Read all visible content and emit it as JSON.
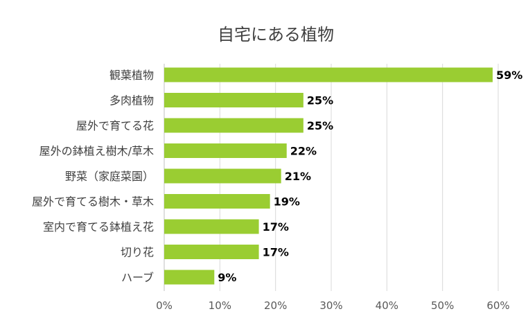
{
  "chart_data": {
    "type": "bar",
    "orientation": "horizontal",
    "title": "自宅にある植物",
    "categories": [
      "観葉植物",
      "多肉植物",
      "屋外で育てる花",
      "屋外の鉢植え樹木/草木",
      "野菜（家庭菜園）",
      "屋外で育てる樹木・草木",
      "室内で育てる鉢植え花",
      "切り花",
      "ハーブ"
    ],
    "values": [
      59,
      25,
      25,
      22,
      21,
      19,
      17,
      17,
      9
    ],
    "data_labels": [
      "59%",
      "25%",
      "25%",
      "22%",
      "21%",
      "19%",
      "17%",
      "17%",
      "9%"
    ],
    "xlim": [
      0,
      60
    ],
    "xticks": [
      0,
      10,
      20,
      30,
      40,
      50,
      60
    ],
    "xtick_labels": [
      "0%",
      "10%",
      "20%",
      "30%",
      "40%",
      "50%",
      "60%"
    ],
    "grid": true,
    "legend": "none",
    "bar_color": "#9acd32"
  }
}
